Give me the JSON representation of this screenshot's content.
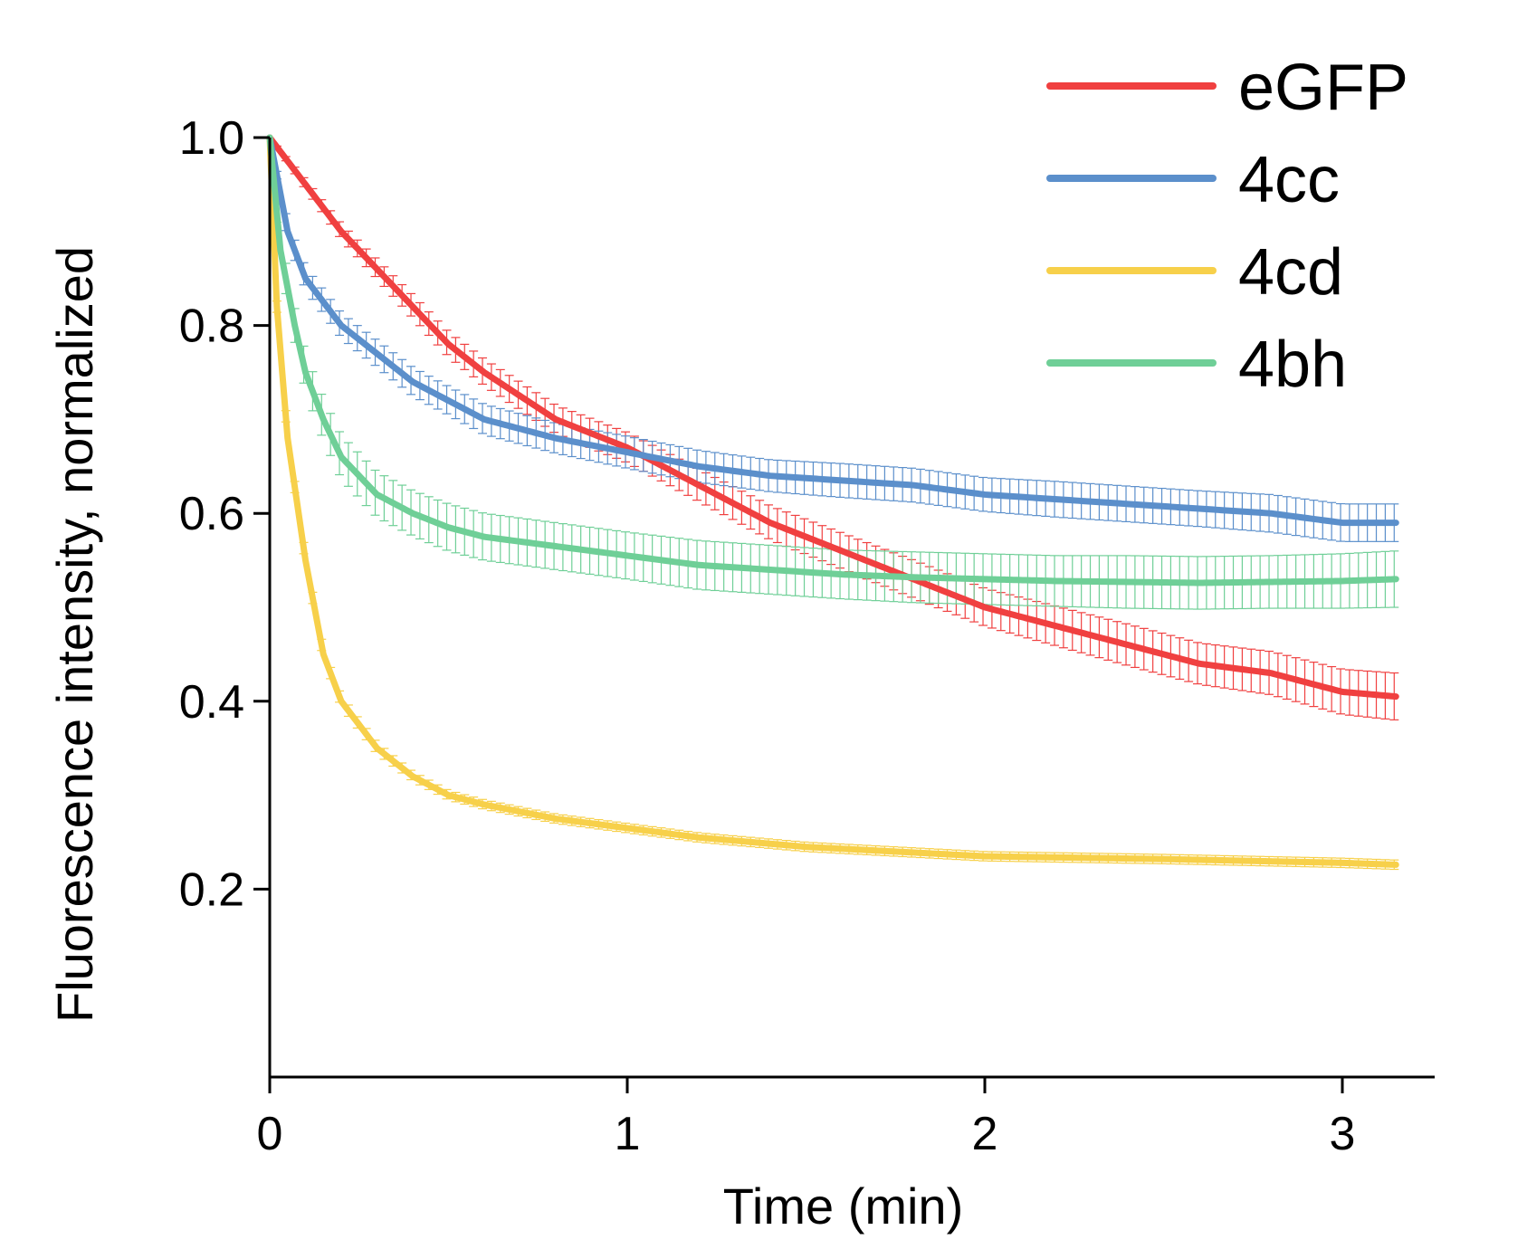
{
  "chart_data": {
    "type": "line",
    "title": "",
    "xlabel": "Time (min)",
    "ylabel": "Fluorescence intensity, normalized",
    "xlim": [
      0,
      3.25
    ],
    "ylim": [
      0,
      1.0
    ],
    "x_ticks": [
      "0",
      "1",
      "2",
      "3"
    ],
    "x_tick_values": [
      0,
      1,
      2,
      3
    ],
    "y_ticks": [
      "1.0",
      "0.8",
      "0.6",
      "0.4",
      "0.2"
    ],
    "y_tick_values": [
      1.0,
      0.8,
      0.6,
      0.4,
      0.2
    ],
    "grid": false,
    "legend_position": "top-right",
    "error_bars": true,
    "series": [
      {
        "name": "eGFP",
        "color": "#f04040",
        "x": [
          0,
          0.1,
          0.2,
          0.3,
          0.4,
          0.5,
          0.6,
          0.8,
          1.0,
          1.2,
          1.4,
          1.6,
          1.8,
          2.0,
          2.2,
          2.4,
          2.6,
          2.8,
          3.0,
          3.15
        ],
        "y": [
          1.0,
          0.95,
          0.9,
          0.86,
          0.82,
          0.78,
          0.75,
          0.7,
          0.67,
          0.63,
          0.59,
          0.56,
          0.53,
          0.5,
          0.48,
          0.46,
          0.44,
          0.43,
          0.41,
          0.405
        ],
        "err": [
          0.0,
          0.005,
          0.008,
          0.01,
          0.012,
          0.013,
          0.014,
          0.015,
          0.016,
          0.017,
          0.018,
          0.019,
          0.02,
          0.02,
          0.021,
          0.022,
          0.022,
          0.023,
          0.024,
          0.025
        ]
      },
      {
        "name": "4cc",
        "color": "#5b8fcb",
        "x": [
          0,
          0.05,
          0.1,
          0.2,
          0.3,
          0.4,
          0.5,
          0.6,
          0.8,
          1.0,
          1.2,
          1.4,
          1.6,
          1.8,
          2.0,
          2.2,
          2.4,
          2.6,
          2.8,
          3.0,
          3.15
        ],
        "y": [
          1.0,
          0.9,
          0.85,
          0.8,
          0.77,
          0.74,
          0.72,
          0.7,
          0.68,
          0.665,
          0.65,
          0.64,
          0.635,
          0.63,
          0.62,
          0.615,
          0.61,
          0.605,
          0.6,
          0.59,
          0.59
        ],
        "err": [
          0.0,
          0.01,
          0.012,
          0.013,
          0.014,
          0.015,
          0.015,
          0.016,
          0.016,
          0.017,
          0.017,
          0.017,
          0.018,
          0.018,
          0.018,
          0.019,
          0.019,
          0.019,
          0.02,
          0.02,
          0.02
        ]
      },
      {
        "name": "4cd",
        "color": "#f7d04a",
        "x": [
          0,
          0.02,
          0.05,
          0.1,
          0.15,
          0.2,
          0.3,
          0.4,
          0.5,
          0.6,
          0.8,
          1.0,
          1.2,
          1.5,
          2.0,
          2.5,
          3.0,
          3.15
        ],
        "y": [
          1.0,
          0.82,
          0.68,
          0.55,
          0.45,
          0.4,
          0.35,
          0.32,
          0.3,
          0.29,
          0.275,
          0.265,
          0.255,
          0.245,
          0.235,
          0.232,
          0.228,
          0.226
        ],
        "err": [
          0.0,
          0.006,
          0.006,
          0.006,
          0.006,
          0.006,
          0.006,
          0.005,
          0.005,
          0.005,
          0.005,
          0.005,
          0.005,
          0.005,
          0.005,
          0.005,
          0.005,
          0.005
        ]
      },
      {
        "name": "4bh",
        "color": "#6fcf97",
        "x": [
          0,
          0.03,
          0.07,
          0.1,
          0.15,
          0.2,
          0.3,
          0.4,
          0.5,
          0.6,
          0.8,
          1.0,
          1.2,
          1.4,
          1.6,
          1.8,
          2.0,
          2.2,
          2.4,
          2.6,
          2.8,
          3.0,
          3.15
        ],
        "y": [
          1.0,
          0.88,
          0.8,
          0.75,
          0.7,
          0.66,
          0.62,
          0.6,
          0.585,
          0.575,
          0.565,
          0.555,
          0.545,
          0.54,
          0.535,
          0.532,
          0.53,
          0.528,
          0.527,
          0.526,
          0.527,
          0.528,
          0.53
        ],
        "err": [
          0.0,
          0.015,
          0.018,
          0.02,
          0.022,
          0.023,
          0.024,
          0.024,
          0.025,
          0.025,
          0.025,
          0.025,
          0.026,
          0.026,
          0.026,
          0.027,
          0.027,
          0.027,
          0.028,
          0.028,
          0.028,
          0.029,
          0.03
        ]
      }
    ]
  }
}
